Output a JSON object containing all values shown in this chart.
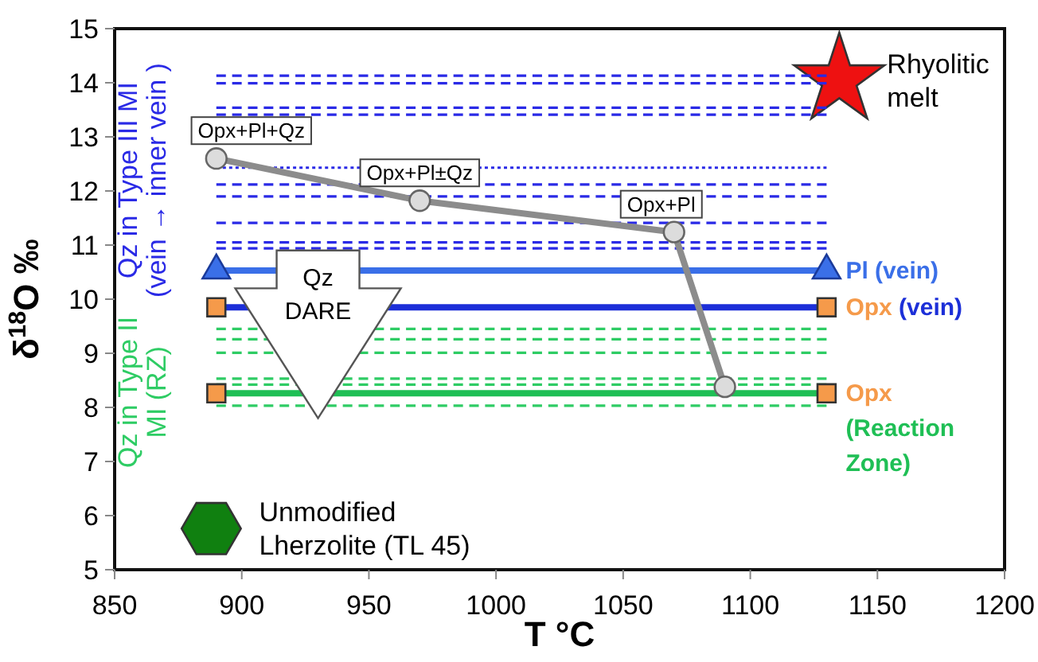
{
  "chart_data": {
    "type": "line",
    "xlabel": "T °C",
    "ylabel": "δ$^{18}$O ‰",
    "xlim": [
      850,
      1200
    ],
    "xticks": [
      850,
      900,
      950,
      1000,
      1050,
      1100,
      1150,
      1200
    ],
    "ylim": [
      5,
      15
    ],
    "yticks": [
      5,
      6,
      7,
      8,
      9,
      10,
      11,
      12,
      13,
      14,
      15
    ],
    "grid": false,
    "annotations": [
      {
        "text": "Opx+Pl+Qz",
        "x": 890,
        "y": 12.6
      },
      {
        "text": "Opx+Pl±Qz",
        "x": 970,
        "y": 11.82
      },
      {
        "text": "Opx+Pl",
        "x": 1070,
        "y": 11.24
      },
      "Qz\nDARE"
    ],
    "series": [
      {
        "name": "Rhyolitic melt",
        "type": "scatter",
        "marker": "star",
        "color": "#ee1111",
        "x": [
          1135
        ],
        "values": [
          14.05
        ]
      },
      {
        "name": "Unmodified Lherzolite (TL 45)",
        "type": "scatter",
        "color": "#108010",
        "x": [
          888
        ],
        "values": [
          5.76
        ]
      },
      {
        "name": "Qz in Type III MI\n(vein → inner vein )",
        "line_style": "dashed",
        "color": "#2a2ae6",
        "x": [
          890,
          1130
        ],
        "values": [
          14.13,
          14.13
        ]
      },
      {
        "line_style": "dashed",
        "color": "#2a2ae6",
        "x": [
          890,
          1130
        ],
        "values": [
          13.99,
          13.99
        ]
      },
      {
        "line_style": "dashed",
        "color": "#2a2ae6",
        "x": [
          890,
          1130
        ],
        "values": [
          13.54,
          13.54
        ]
      },
      {
        "line_style": "dashed",
        "color": "#2a2ae6",
        "x": [
          890,
          1130
        ],
        "values": [
          13.41,
          13.41
        ]
      },
      {
        "line_style": "dotted",
        "color": "#2a2ae6",
        "x": [
          890,
          1130
        ],
        "values": [
          12.43,
          12.43
        ]
      },
      {
        "line_style": "dashed",
        "color": "#2a2ae6",
        "x": [
          890,
          1130
        ],
        "values": [
          12.12,
          12.12
        ]
      },
      {
        "line_style": "dashed",
        "color": "#2a2ae6",
        "x": [
          890,
          1130
        ],
        "values": [
          11.9,
          11.9
        ]
      },
      {
        "line_style": "dashed",
        "color": "#2a2ae6",
        "x": [
          890,
          1130
        ],
        "values": [
          11.41,
          11.41
        ]
      },
      {
        "line_style": "dashed",
        "color": "#2a2ae6",
        "x": [
          890,
          1130
        ],
        "values": [
          11.05,
          11.05
        ]
      },
      {
        "line_style": "dashed",
        "color": "#2a2ae6",
        "x": [
          890,
          1130
        ],
        "values": [
          10.94,
          10.94
        ]
      },
      {
        "name": "Qz in Type II\nMI (RZ)",
        "line_style": "dashed",
        "color": "#2ecc64",
        "x": [
          890,
          1130
        ],
        "values": [
          9.45,
          9.45
        ]
      },
      {
        "line_style": "dashed",
        "color": "#2ecc64",
        "x": [
          890,
          1130
        ],
        "values": [
          9.26,
          9.26
        ]
      },
      {
        "line_style": "dashed",
        "color": "#2ecc64",
        "x": [
          890,
          1130
        ],
        "values": [
          9.01,
          9.01
        ]
      },
      {
        "line_style": "dashed",
        "color": "#2ecc64",
        "x": [
          890,
          1130
        ],
        "values": [
          8.53,
          8.53
        ]
      },
      {
        "line_style": "dashed",
        "color": "#2ecc64",
        "x": [
          890,
          1130
        ],
        "values": [
          8.42,
          8.42
        ]
      },
      {
        "line_style": "dashed",
        "color": "#2ecc64",
        "x": [
          890,
          1130
        ],
        "values": [
          8.03,
          8.03
        ]
      },
      {
        "name": "Pl (vein)",
        "line_style": "solid",
        "marker": "triangle",
        "color": "#3a6fe8",
        "x": [
          890,
          1130
        ],
        "values": [
          10.53,
          10.53
        ]
      },
      {
        "name": "Opx",
        "type": "scatter",
        "marker": "square",
        "color": "#f59a4a",
        "x": [
          890,
          1130
        ],
        "values": [
          9.85,
          9.85
        ]
      },
      {
        "name": "Opx",
        "type": "scatter",
        "marker": "square",
        "color": "#f59a4a",
        "x": [
          890,
          1130
        ],
        "values": [
          8.26,
          8.26
        ]
      },
      {
        "name": "(vein)",
        "line_style": "solid",
        "color": "#1c2fd8",
        "x": [
          890,
          1130
        ],
        "values": [
          9.85,
          9.85
        ]
      },
      {
        "name": "(Reaction Zone)",
        "line_style": "solid",
        "color": "#1fbf55",
        "x": [
          890,
          1130
        ],
        "values": [
          8.26,
          8.26
        ]
      },
      {
        "line_style": "solid",
        "marker": "circle",
        "color": "#8c8c8c",
        "x": [
          890,
          970,
          1070,
          1090
        ],
        "values": [
          12.6,
          11.82,
          11.24,
          8.38
        ]
      }
    ]
  }
}
